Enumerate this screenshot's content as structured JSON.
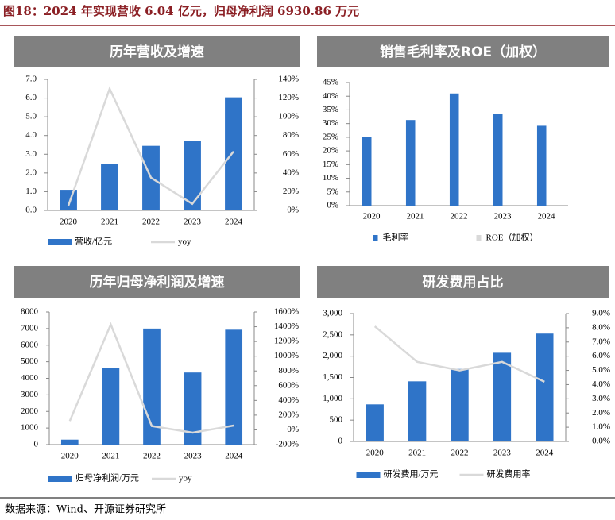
{
  "title": "图18：2024 年实现营收 6.04 亿元，归母净利润 6930.86 万元",
  "source": "数据来源：Wind、开源证券研究所",
  "chart_data": [
    {
      "type": "bar",
      "title": "历年营收及增速",
      "categories": [
        "2020",
        "2021",
        "2022",
        "2023",
        "2024"
      ],
      "series": [
        {
          "name": "营收/亿元",
          "type": "bar",
          "color": "#2f74c8",
          "values": [
            1.1,
            2.5,
            3.45,
            3.7,
            6.04
          ]
        },
        {
          "name": "yoy",
          "type": "line",
          "axis": "y2",
          "color": "#d9d9d9",
          "values": [
            5,
            130,
            35,
            7,
            63
          ]
        }
      ],
      "ylim": [
        0,
        7
      ],
      "yticks": [
        {
          "value": 0,
          "label": "0.0"
        },
        {
          "value": 1,
          "label": "1.0"
        },
        {
          "value": 2,
          "label": "2.0"
        },
        {
          "value": 3,
          "label": "3.0"
        },
        {
          "value": 4,
          "label": "4.0"
        },
        {
          "value": 5,
          "label": "5.0"
        },
        {
          "value": 6,
          "label": "6.0"
        },
        {
          "value": 7,
          "label": "7.0"
        }
      ],
      "y2lim": [
        0,
        140
      ],
      "y2ticks": [
        {
          "value": 0,
          "label": "0%"
        },
        {
          "value": 20,
          "label": "20%"
        },
        {
          "value": 40,
          "label": "40%"
        },
        {
          "value": 60,
          "label": "60%"
        },
        {
          "value": 80,
          "label": "80%"
        },
        {
          "value": 100,
          "label": "100%"
        },
        {
          "value": 120,
          "label": "120%"
        },
        {
          "value": 140,
          "label": "140%"
        }
      ]
    },
    {
      "type": "bar",
      "title": "销售毛利率及ROE（加权）",
      "categories": [
        "2020",
        "2021",
        "2022",
        "2023",
        "2024"
      ],
      "series": [
        {
          "name": "毛利率",
          "type": "bar",
          "color": "#2f74c8",
          "values": [
            25.2,
            31.3,
            41,
            33.4,
            29.2
          ]
        },
        {
          "name": "ROE（加权）",
          "type": "bar",
          "color": "#d9d9d9",
          "values": [
            null,
            null,
            null,
            null,
            null
          ]
        }
      ],
      "ylim": [
        0,
        45
      ],
      "yticks": [
        {
          "value": 0,
          "label": "0%"
        },
        {
          "value": 5,
          "label": "5%"
        },
        {
          "value": 10,
          "label": "10%"
        },
        {
          "value": 15,
          "label": "15%"
        },
        {
          "value": 20,
          "label": "20%"
        },
        {
          "value": 25,
          "label": "25%"
        },
        {
          "value": 30,
          "label": "30%"
        },
        {
          "value": 35,
          "label": "35%"
        },
        {
          "value": 40,
          "label": "40%"
        },
        {
          "value": 45,
          "label": "45%"
        }
      ]
    },
    {
      "type": "bar",
      "title": "历年归母净利润及增速",
      "categories": [
        "2020",
        "2021",
        "2022",
        "2023",
        "2024"
      ],
      "series": [
        {
          "name": "归母净利润/万元",
          "type": "bar",
          "color": "#2f74c8",
          "values": [
            300,
            4600,
            7000,
            4350,
            6930.86
          ]
        },
        {
          "name": "yoy",
          "type": "line",
          "axis": "y2",
          "color": "#d9d9d9",
          "values": [
            120,
            1430,
            52,
            -38,
            59
          ]
        }
      ],
      "ylim": [
        0,
        8000
      ],
      "yticks": [
        0,
        1000,
        2000,
        3000,
        4000,
        5000,
        6000,
        7000,
        8000
      ],
      "y2lim": [
        -200,
        1600
      ],
      "y2ticks": [
        {
          "value": -200,
          "label": "-200%"
        },
        {
          "value": 0,
          "label": "0%"
        },
        {
          "value": 200,
          "label": "200%"
        },
        {
          "value": 400,
          "label": "400%"
        },
        {
          "value": 600,
          "label": "600%"
        },
        {
          "value": 800,
          "label": "800%"
        },
        {
          "value": 1000,
          "label": "1000%"
        },
        {
          "value": 1200,
          "label": "1200%"
        },
        {
          "value": 1400,
          "label": "1400%"
        },
        {
          "value": 1600,
          "label": "1600%"
        }
      ]
    },
    {
      "type": "bar",
      "title": "研发费用占比",
      "categories": [
        "2020",
        "2021",
        "2022",
        "2023",
        "2024"
      ],
      "series": [
        {
          "name": "研发费用/万元",
          "type": "bar",
          "color": "#2f74c8",
          "values": [
            870,
            1410,
            1700,
            2080,
            2530
          ]
        },
        {
          "name": "研发费用率",
          "type": "line",
          "axis": "y2",
          "color": "#d9d9d9",
          "values": [
            8.1,
            5.6,
            5.0,
            5.6,
            4.2
          ]
        }
      ],
      "ylim": [
        0,
        3000
      ],
      "yticks": [
        0,
        500,
        {
          "value": 1000,
          "label": "1,000"
        },
        {
          "value": 1500,
          "label": "1,500"
        },
        {
          "value": 2000,
          "label": "2,000"
        },
        {
          "value": 2500,
          "label": "2,500"
        },
        {
          "value": 3000,
          "label": "3,000"
        }
      ],
      "y2lim": [
        0,
        9
      ],
      "y2ticks": [
        {
          "value": 0,
          "label": "0.0%"
        },
        {
          "value": 1,
          "label": "1.0%"
        },
        {
          "value": 2,
          "label": "2.0%"
        },
        {
          "value": 3,
          "label": "3.0%"
        },
        {
          "value": 4,
          "label": "4.0%"
        },
        {
          "value": 5,
          "label": "5.0%"
        },
        {
          "value": 6,
          "label": "6.0%"
        },
        {
          "value": 7,
          "label": "7.0%"
        },
        {
          "value": 8,
          "label": "8.0%"
        },
        {
          "value": 9,
          "label": "9.0%"
        }
      ]
    }
  ]
}
